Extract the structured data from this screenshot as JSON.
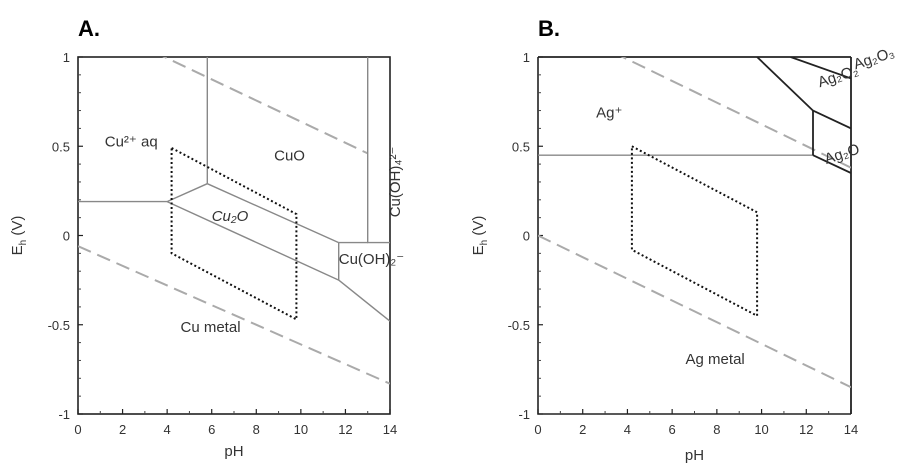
{
  "chart_data": [
    {
      "type": "line",
      "panel": "A.",
      "xlabel": "pH",
      "ylabel": "E",
      "ylabel_sub": "h",
      "ylabel_unit": "(V)",
      "xlim": [
        0,
        14
      ],
      "ylim": [
        -1,
        1
      ],
      "x_ticks": [
        "0",
        "2",
        "4",
        "6",
        "8",
        "10",
        "12",
        "14"
      ],
      "y_ticks": [
        "-1",
        "-0.5",
        "0",
        "0.5",
        "1"
      ],
      "regions": [
        {
          "label": "Cu²⁺ aq",
          "x": 1.2,
          "y": 0.5
        },
        {
          "label": "CuO",
          "x": 8.8,
          "y": 0.42
        },
        {
          "label": "Cu₂O",
          "x": 6.0,
          "y": 0.08,
          "italic": true
        },
        {
          "label": "Cu(OH)₂⁻",
          "x": 11.7,
          "y": -0.16
        },
        {
          "label": "Cu metal",
          "x": 4.6,
          "y": -0.54
        },
        {
          "label": "Cu(OH)₄²⁻",
          "x": 14.45,
          "y": 0.3,
          "vertical": true
        }
      ],
      "boundaries": [
        {
          "name": "Cu2+/Cu",
          "x": [
            0,
            4.0
          ],
          "y": [
            0.19,
            0.19
          ]
        },
        {
          "name": "Cu2+/Cu2O",
          "x": [
            4.0,
            5.8
          ],
          "y": [
            0.19,
            0.29
          ]
        },
        {
          "name": "Cu2+/CuO",
          "x": [
            5.8,
            5.8
          ],
          "y": [
            0.29,
            1.0
          ]
        },
        {
          "name": "CuO/Cu2O",
          "x": [
            5.8,
            11.7
          ],
          "y": [
            0.29,
            -0.04
          ]
        },
        {
          "name": "Cu2O/Cu",
          "x": [
            4.0,
            11.7
          ],
          "y": [
            0.19,
            -0.25
          ]
        },
        {
          "name": "Cu2O/Cu(OH)2-",
          "x": [
            11.7,
            11.7
          ],
          "y": [
            -0.04,
            -0.25
          ]
        },
        {
          "name": "CuO/Cu(OH)2-",
          "x": [
            11.7,
            13.0
          ],
          "y": [
            -0.04,
            -0.04
          ]
        },
        {
          "name": "Cu(OH)2-/Cu",
          "x": [
            11.7,
            14.0
          ],
          "y": [
            -0.25,
            -0.48
          ]
        },
        {
          "name": "CuO/Cu(OH)4 2-",
          "x": [
            13.0,
            13.0,
            13.0,
            14.0
          ],
          "y": [
            1.0,
            0.0,
            -0.04,
            -0.04
          ]
        }
      ],
      "water_lines": [
        {
          "name": "O2/H2O",
          "x": [
            0,
            13.0
          ],
          "y": [
            1.23,
            0.46
          ]
        },
        {
          "name": "H2O/H2",
          "x": [
            0,
            14.0
          ],
          "y": [
            -0.06,
            -0.83
          ]
        }
      ],
      "window": {
        "x": [
          4.2,
          9.8,
          9.8,
          4.2
        ],
        "y": [
          0.49,
          0.12,
          -0.47,
          -0.1
        ]
      }
    },
    {
      "type": "line",
      "panel": "B.",
      "xlabel": "pH",
      "ylabel": "E",
      "ylabel_sub": "h",
      "ylabel_unit": "(V)",
      "xlim": [
        0,
        14
      ],
      "ylim": [
        -1,
        1
      ],
      "x_ticks": [
        "0",
        "2",
        "4",
        "6",
        "8",
        "10",
        "12",
        "14"
      ],
      "y_ticks": [
        "-1",
        "-0.5",
        "0",
        "0.5",
        "1"
      ],
      "regions": [
        {
          "label": "Ag⁺",
          "x": 2.6,
          "y": 0.66
        },
        {
          "label": "Ag₂O₂",
          "x": 12.6,
          "y": 0.83
        },
        {
          "label": "Ag₂O",
          "x": 12.9,
          "y": 0.4
        },
        {
          "label": "Ag metal",
          "x": 6.6,
          "y": -0.72
        },
        {
          "label": "Ag₂O₃",
          "x": 14.2,
          "y": 0.93
        }
      ],
      "boundaries": [
        {
          "name": "Ag+/Ag",
          "x": [
            0,
            12.3
          ],
          "y": [
            0.45,
            0.45
          ]
        },
        {
          "name": "Ag2O/Ag",
          "x": [
            12.3,
            14.0
          ],
          "y": [
            0.45,
            0.35
          ]
        },
        {
          "name": "Ag+/Ag2O",
          "x": [
            12.3,
            12.3
          ],
          "y": [
            0.45,
            0.7
          ]
        },
        {
          "name": "Ag+/Ag2O2",
          "x": [
            9.8,
            12.3
          ],
          "y": [
            1.0,
            0.7
          ]
        },
        {
          "name": "Ag2O2/Ag2O",
          "x": [
            12.3,
            14.0
          ],
          "y": [
            0.7,
            0.6
          ]
        },
        {
          "name": "Ag2O2/Ag2O3",
          "x": [
            11.3,
            14.0
          ],
          "y": [
            1.0,
            0.88
          ]
        }
      ],
      "water_lines": [
        {
          "name": "O2/H2O",
          "x": [
            0,
            14.0
          ],
          "y": [
            1.23,
            0.38
          ]
        },
        {
          "name": "H2O/H2",
          "x": [
            0,
            14.0
          ],
          "y": [
            0.0,
            -0.85
          ]
        }
      ],
      "window": {
        "x": [
          4.2,
          9.8,
          9.8,
          4.2
        ],
        "y": [
          0.5,
          0.13,
          -0.45,
          -0.08
        ]
      }
    }
  ]
}
